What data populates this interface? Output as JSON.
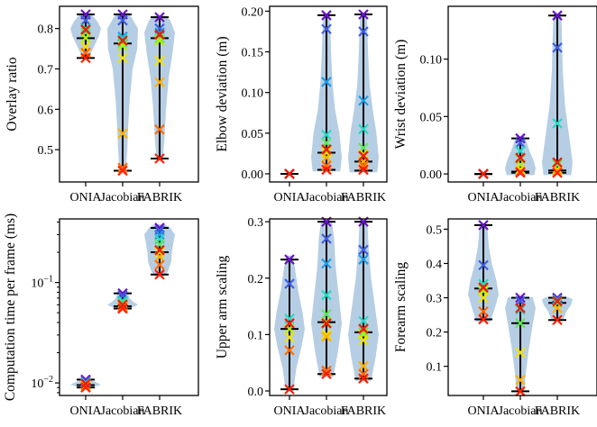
{
  "chart_data": [
    {
      "type": "violin",
      "ylabel": "Overlay ratio",
      "categories": [
        "ONIA",
        "Jacobian",
        "FABRIK"
      ],
      "ylim": [
        0.42,
        0.855
      ],
      "yticks": [
        0.5,
        0.6,
        0.7,
        0.8
      ],
      "yticklabels": [
        "0.5",
        "0.6",
        "0.7",
        "0.8"
      ],
      "groups": [
        {
          "min": 0.727,
          "median": 0.776,
          "mean": 0.797,
          "max": 0.835,
          "points": [
            0.835,
            0.82,
            0.8,
            0.79,
            0.777,
            0.755,
            0.74,
            0.727
          ],
          "shape": [
            [
              0.725,
              0.2
            ],
            [
              0.74,
              0.35
            ],
            [
              0.76,
              0.6
            ],
            [
              0.78,
              0.85
            ],
            [
              0.8,
              1.0
            ],
            [
              0.815,
              0.8
            ],
            [
              0.828,
              0.55
            ],
            [
              0.838,
              0.3
            ]
          ]
        },
        {
          "min": 0.448,
          "median": 0.763,
          "mean": 0.77,
          "max": 0.835,
          "points": [
            0.835,
            0.82,
            0.78,
            0.775,
            0.765,
            0.757,
            0.727,
            0.54,
            0.455,
            0.448
          ],
          "shape": [
            [
              0.445,
              0.2
            ],
            [
              0.5,
              0.3
            ],
            [
              0.55,
              0.35
            ],
            [
              0.62,
              0.45
            ],
            [
              0.7,
              0.65
            ],
            [
              0.75,
              0.95
            ],
            [
              0.8,
              1.0
            ],
            [
              0.83,
              0.55
            ],
            [
              0.838,
              0.3
            ]
          ]
        },
        {
          "min": 0.478,
          "median": 0.776,
          "mean": 0.785,
          "max": 0.828,
          "points": [
            0.828,
            0.8,
            0.79,
            0.785,
            0.776,
            0.77,
            0.72,
            0.667,
            0.55,
            0.478
          ],
          "shape": [
            [
              0.475,
              0.2
            ],
            [
              0.52,
              0.3
            ],
            [
              0.6,
              0.42
            ],
            [
              0.68,
              0.6
            ],
            [
              0.74,
              0.85
            ],
            [
              0.79,
              1.0
            ],
            [
              0.82,
              0.7
            ],
            [
              0.832,
              0.35
            ]
          ]
        }
      ]
    },
    {
      "type": "violin",
      "ylabel": "Elbow deviation (m)",
      "categories": [
        "ONIA",
        "Jacobian",
        "FABRIK"
      ],
      "ylim": [
        -0.01,
        0.206
      ],
      "yticks": [
        0.0,
        0.05,
        0.1,
        0.15,
        0.2
      ],
      "yticklabels": [
        "0.00",
        "0.05",
        "0.10",
        "0.15",
        "0.20"
      ],
      "groups": [
        {
          "min": 0.0,
          "median": 0.0,
          "mean": 0.0,
          "max": 0.0,
          "points": [
            0.0,
            0.0,
            0.0
          ],
          "shape": [
            [
              -0.001,
              0.08
            ],
            [
              0.0,
              0.1
            ],
            [
              0.001,
              0.08
            ]
          ]
        },
        {
          "min": 0.005,
          "median": 0.026,
          "mean": 0.03,
          "max": 0.195,
          "points": [
            0.195,
            0.178,
            0.113,
            0.048,
            0.038,
            0.03,
            0.026,
            0.02,
            0.01,
            0.005
          ],
          "shape": [
            [
              0.003,
              0.9
            ],
            [
              0.02,
              1.0
            ],
            [
              0.05,
              0.85
            ],
            [
              0.08,
              0.55
            ],
            [
              0.11,
              0.4
            ],
            [
              0.15,
              0.3
            ],
            [
              0.18,
              0.25
            ],
            [
              0.197,
              0.2
            ]
          ]
        },
        {
          "min": 0.004,
          "median": 0.015,
          "mean": 0.022,
          "max": 0.196,
          "points": [
            0.196,
            0.175,
            0.09,
            0.055,
            0.032,
            0.024,
            0.015,
            0.01,
            0.005
          ],
          "shape": [
            [
              0.002,
              0.9
            ],
            [
              0.02,
              1.0
            ],
            [
              0.05,
              0.85
            ],
            [
              0.08,
              0.6
            ],
            [
              0.11,
              0.4
            ],
            [
              0.15,
              0.3
            ],
            [
              0.18,
              0.25
            ],
            [
              0.198,
              0.2
            ]
          ]
        }
      ]
    },
    {
      "type": "violin",
      "ylabel": "Wrist deviation (m)",
      "categories": [
        "ONIA",
        "Jacobian",
        "FABRIK"
      ],
      "ylim": [
        -0.007,
        0.146
      ],
      "yticks": [
        0.0,
        0.05,
        0.1
      ],
      "yticklabels": [
        "0.00",
        "0.05",
        "0.10"
      ],
      "groups": [
        {
          "min": 0.0,
          "median": 0.0,
          "mean": 0.0,
          "max": 0.0,
          "points": [
            0.0,
            0.0,
            0.0
          ],
          "shape": [
            [
              -0.0008,
              0.08
            ],
            [
              0.0,
              0.1
            ],
            [
              0.0008,
              0.08
            ]
          ]
        },
        {
          "min": 0.001,
          "median": 0.002,
          "mean": 0.014,
          "max": 0.031,
          "points": [
            0.031,
            0.027,
            0.02,
            0.013,
            0.008,
            0.004,
            0.002,
            0.001
          ],
          "shape": [
            [
              -0.001,
              0.9
            ],
            [
              0.005,
              1.0
            ],
            [
              0.012,
              0.85
            ],
            [
              0.02,
              0.6
            ],
            [
              0.028,
              0.4
            ],
            [
              0.033,
              0.25
            ]
          ]
        },
        {
          "min": 0.001,
          "median": 0.003,
          "mean": 0.01,
          "max": 0.138,
          "points": [
            0.138,
            0.11,
            0.044,
            0.008,
            0.004,
            0.003,
            0.001
          ],
          "shape": [
            [
              -0.001,
              0.9
            ],
            [
              0.01,
              1.0
            ],
            [
              0.03,
              0.8
            ],
            [
              0.06,
              0.5
            ],
            [
              0.09,
              0.35
            ],
            [
              0.12,
              0.3
            ],
            [
              0.14,
              0.25
            ]
          ]
        }
      ]
    },
    {
      "type": "violin",
      "yscale": "log",
      "ylabel": "Computation time per frame (ms)",
      "categories": [
        "ONIA",
        "Jacobian",
        "FABRIK"
      ],
      "ylim": [
        0.0075,
        0.43
      ],
      "yticks": [
        0.01,
        0.1
      ],
      "yticklabels": [
        "10⁻²",
        "10⁻¹"
      ],
      "groups": [
        {
          "min": 0.009,
          "median": 0.0095,
          "mean": 0.0098,
          "max": 0.0108,
          "points": [
            0.0108,
            0.0104,
            0.01,
            0.0098,
            0.0095,
            0.0093,
            0.009
          ],
          "shape": [
            [
              0.0088,
              0.2
            ],
            [
              0.0092,
              0.6
            ],
            [
              0.0096,
              1.0
            ],
            [
              0.0101,
              0.7
            ],
            [
              0.0106,
              0.4
            ],
            [
              0.011,
              0.2
            ]
          ]
        },
        {
          "min": 0.055,
          "median": 0.058,
          "mean": 0.06,
          "max": 0.078,
          "points": [
            0.078,
            0.074,
            0.066,
            0.062,
            0.059,
            0.058,
            0.056,
            0.055
          ],
          "shape": [
            [
              0.053,
              0.35
            ],
            [
              0.057,
              0.7
            ],
            [
              0.06,
              1.0
            ],
            [
              0.064,
              0.7
            ],
            [
              0.07,
              0.45
            ],
            [
              0.077,
              0.35
            ],
            [
              0.081,
              0.25
            ]
          ]
        },
        {
          "min": 0.12,
          "median": 0.2,
          "mean": 0.21,
          "max": 0.35,
          "points": [
            0.35,
            0.33,
            0.3,
            0.27,
            0.24,
            0.21,
            0.2,
            0.18,
            0.15,
            0.12
          ],
          "shape": [
            [
              0.115,
              0.3
            ],
            [
              0.13,
              0.55
            ],
            [
              0.16,
              0.75
            ],
            [
              0.2,
              0.8
            ],
            [
              0.25,
              0.9
            ],
            [
              0.3,
              1.0
            ],
            [
              0.35,
              0.7
            ],
            [
              0.38,
              0.35
            ]
          ]
        }
      ]
    },
    {
      "type": "violin",
      "ylabel": "Upper arm scaling",
      "categories": [
        "ONIA",
        "Jacobian",
        "FABRIK"
      ],
      "ylim": [
        -0.008,
        0.305
      ],
      "yticks": [
        0.0,
        0.1,
        0.2,
        0.3
      ],
      "yticklabels": [
        "0.0",
        "0.1",
        "0.2",
        "0.3"
      ],
      "groups": [
        {
          "min": 0.003,
          "median": 0.11,
          "mean": 0.12,
          "max": 0.233,
          "points": [
            0.233,
            0.19,
            0.128,
            0.12,
            0.11,
            0.095,
            0.072,
            0.003
          ],
          "shape": [
            [
              0.0,
              0.25
            ],
            [
              0.04,
              0.45
            ],
            [
              0.08,
              0.8
            ],
            [
              0.11,
              1.0
            ],
            [
              0.14,
              0.85
            ],
            [
              0.18,
              0.55
            ],
            [
              0.22,
              0.35
            ],
            [
              0.24,
              0.2
            ]
          ]
        },
        {
          "min": 0.03,
          "median": 0.122,
          "mean": 0.12,
          "max": 0.3,
          "points": [
            0.3,
            0.27,
            0.226,
            0.17,
            0.136,
            0.122,
            0.1,
            0.096,
            0.036,
            0.03
          ],
          "shape": [
            [
              0.025,
              0.45
            ],
            [
              0.07,
              0.75
            ],
            [
              0.12,
              1.0
            ],
            [
              0.17,
              0.8
            ],
            [
              0.22,
              0.6
            ],
            [
              0.27,
              0.5
            ],
            [
              0.302,
              0.35
            ]
          ]
        },
        {
          "min": 0.022,
          "median": 0.104,
          "mean": 0.11,
          "max": 0.3,
          "points": [
            0.3,
            0.25,
            0.233,
            0.124,
            0.104,
            0.1,
            0.09,
            0.044,
            0.03,
            0.022
          ],
          "shape": [
            [
              0.018,
              0.5
            ],
            [
              0.06,
              0.8
            ],
            [
              0.1,
              1.0
            ],
            [
              0.15,
              0.75
            ],
            [
              0.2,
              0.5
            ],
            [
              0.25,
              0.35
            ],
            [
              0.302,
              0.25
            ]
          ]
        }
      ]
    },
    {
      "type": "violin",
      "ylabel": "Forearm scaling",
      "categories": [
        "ONIA",
        "Jacobian",
        "FABRIK"
      ],
      "ylim": [
        0.015,
        0.53
      ],
      "yticks": [
        0.1,
        0.2,
        0.3,
        0.4,
        0.5
      ],
      "yticklabels": [
        "0.1",
        "0.2",
        "0.3",
        "0.4",
        "0.5"
      ],
      "groups": [
        {
          "min": 0.237,
          "median": 0.327,
          "mean": 0.33,
          "max": 0.512,
          "points": [
            0.512,
            0.395,
            0.34,
            0.327,
            0.32,
            0.3,
            0.26,
            0.237
          ],
          "shape": [
            [
              0.23,
              0.45
            ],
            [
              0.27,
              0.75
            ],
            [
              0.31,
              1.0
            ],
            [
              0.35,
              0.85
            ],
            [
              0.4,
              0.55
            ],
            [
              0.45,
              0.35
            ],
            [
              0.51,
              0.25
            ]
          ]
        },
        {
          "min": 0.027,
          "median": 0.226,
          "mean": 0.27,
          "max": 0.3,
          "points": [
            0.3,
            0.29,
            0.265,
            0.226,
            0.14,
            0.06,
            0.027
          ],
          "shape": [
            [
              0.025,
              0.25
            ],
            [
              0.08,
              0.35
            ],
            [
              0.15,
              0.55
            ],
            [
              0.22,
              0.8
            ],
            [
              0.27,
              1.0
            ],
            [
              0.302,
              0.8
            ]
          ]
        },
        {
          "min": 0.235,
          "median": 0.285,
          "mean": 0.29,
          "max": 0.3,
          "points": [
            0.3,
            0.295,
            0.285,
            0.27,
            0.235
          ],
          "shape": [
            [
              0.232,
              0.35
            ],
            [
              0.26,
              0.6
            ],
            [
              0.28,
              0.9
            ],
            [
              0.295,
              1.0
            ],
            [
              0.302,
              0.7
            ]
          ]
        }
      ]
    }
  ],
  "palette": {
    "violin_fill": "#a9c6df",
    "stat_line": "#000000",
    "mean_marker": "#e8200e",
    "points": [
      "#ff1f00",
      "#ff6a00",
      "#ffb000",
      "#f2e100",
      "#b6f000",
      "#5fe65c",
      "#22d9c4",
      "#1c9ce8",
      "#3f5ce0",
      "#6a12c8"
    ]
  }
}
